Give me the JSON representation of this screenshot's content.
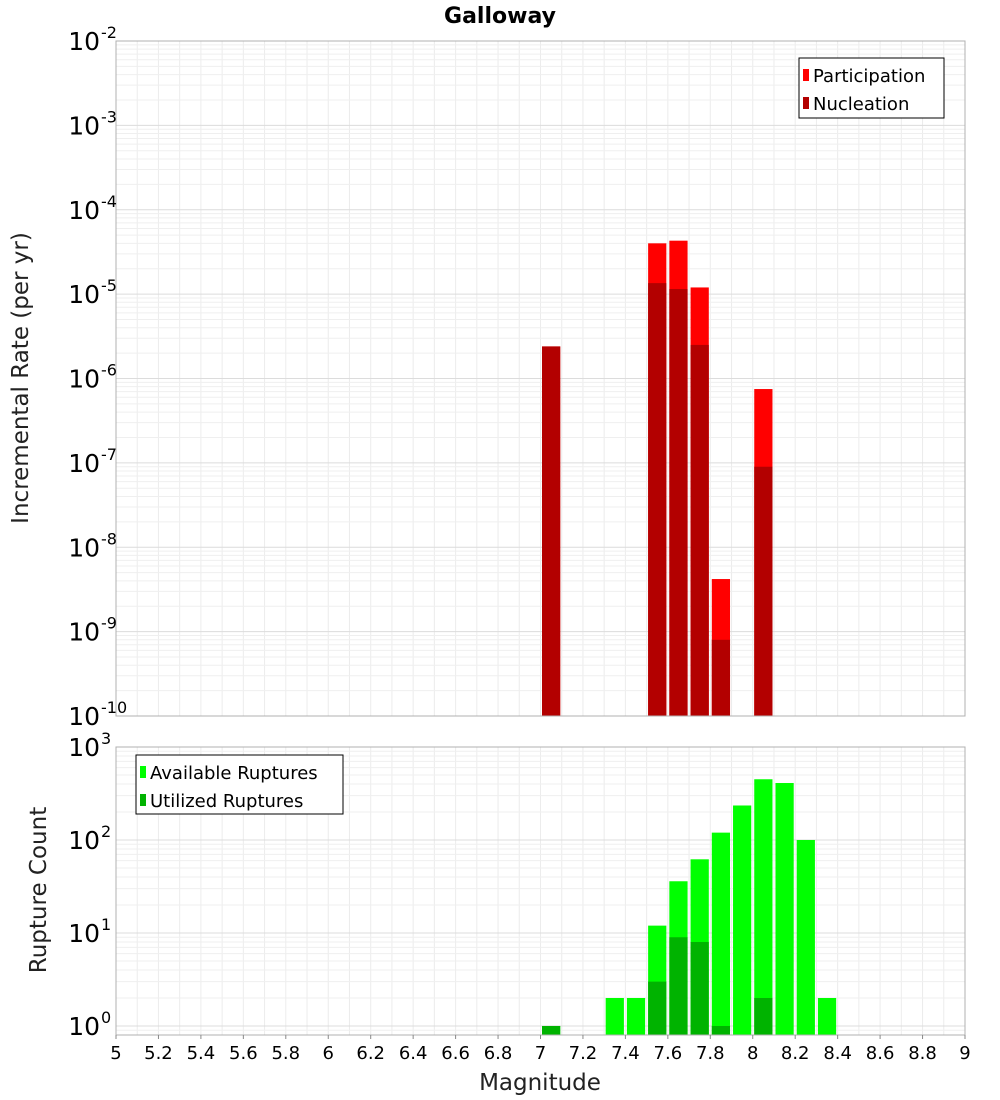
{
  "chart_data": [
    {
      "type": "bar",
      "title": "Galloway",
      "xlabel": "Magnitude",
      "ylabel": "Incremental Rate (per yr)",
      "yscale": "log",
      "xlim": [
        5,
        9
      ],
      "ylim": [
        1e-10,
        0.01
      ],
      "grid": true,
      "legend_position": "top-right",
      "series": [
        {
          "name": "Participation",
          "color": "#ff0000",
          "points": [
            {
              "x": 7.05,
              "y": 2.4e-06
            },
            {
              "x": 7.55,
              "y": 4e-05
            },
            {
              "x": 7.65,
              "y": 4.3e-05
            },
            {
              "x": 7.75,
              "y": 1.2e-05
            },
            {
              "x": 7.85,
              "y": 4.2e-09
            },
            {
              "x": 8.05,
              "y": 7.5e-07
            }
          ]
        },
        {
          "name": "Nucleation",
          "color": "#b30000",
          "points": [
            {
              "x": 7.05,
              "y": 2.4e-06
            },
            {
              "x": 7.55,
              "y": 1.35e-05
            },
            {
              "x": 7.65,
              "y": 1.15e-05
            },
            {
              "x": 7.75,
              "y": 2.5e-06
            },
            {
              "x": 7.85,
              "y": 8e-10
            },
            {
              "x": 8.05,
              "y": 9e-08
            }
          ]
        }
      ]
    },
    {
      "type": "bar",
      "xlabel": "Magnitude",
      "ylabel": "Rupture Count",
      "yscale": "log",
      "xlim": [
        5,
        9
      ],
      "ylim": [
        0.8,
        1000
      ],
      "grid": true,
      "legend_position": "top-left",
      "series": [
        {
          "name": "Available Ruptures",
          "color": "#00ff00",
          "points": [
            {
              "x": 7.05,
              "y": 1
            },
            {
              "x": 7.35,
              "y": 2
            },
            {
              "x": 7.45,
              "y": 2
            },
            {
              "x": 7.55,
              "y": 12
            },
            {
              "x": 7.65,
              "y": 36
            },
            {
              "x": 7.75,
              "y": 62
            },
            {
              "x": 7.85,
              "y": 120
            },
            {
              "x": 7.95,
              "y": 235
            },
            {
              "x": 8.05,
              "y": 450
            },
            {
              "x": 8.15,
              "y": 410
            },
            {
              "x": 8.25,
              "y": 100
            },
            {
              "x": 8.35,
              "y": 2
            }
          ]
        },
        {
          "name": "Utilized Ruptures",
          "color": "#00b300",
          "points": [
            {
              "x": 7.05,
              "y": 1
            },
            {
              "x": 7.55,
              "y": 3
            },
            {
              "x": 7.65,
              "y": 9
            },
            {
              "x": 7.75,
              "y": 8
            },
            {
              "x": 7.85,
              "y": 1
            },
            {
              "x": 8.05,
              "y": 2
            }
          ]
        }
      ]
    }
  ],
  "top_yticks": {
    "base": "10",
    "exponents": [
      "-2",
      "-3",
      "-4",
      "-5",
      "-6",
      "-7",
      "-8",
      "-9",
      "-10"
    ]
  },
  "bottom_yticks": {
    "base": "10",
    "exponents": [
      "3",
      "2",
      "1",
      "0"
    ]
  },
  "xticks": [
    "5",
    "5.2",
    "5.4",
    "5.6",
    "5.8",
    "6",
    "6.2",
    "6.4",
    "6.6",
    "6.8",
    "7",
    "7.2",
    "7.4",
    "7.6",
    "7.8",
    "8",
    "8.2",
    "8.4",
    "8.6",
    "8.8",
    "9"
  ]
}
